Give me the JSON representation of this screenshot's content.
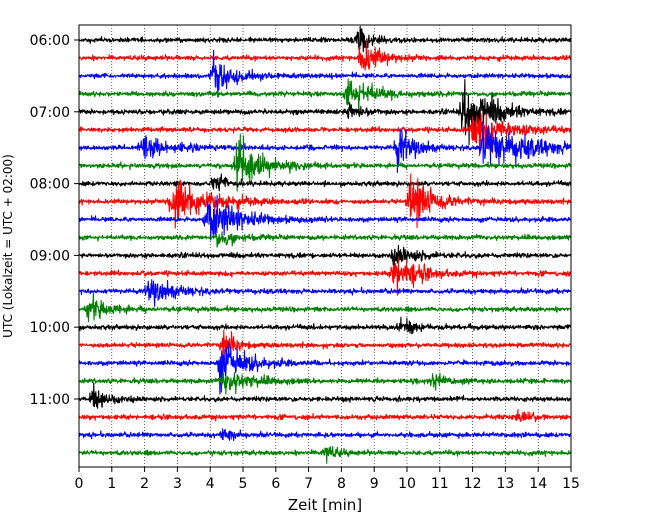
{
  "chart_data": {
    "type": "line",
    "title": "",
    "xlabel": "Zeit  [min]",
    "ylabel": "UTC (Lokalzeit = UTC + 02:00)",
    "xlim": [
      0,
      15
    ],
    "x_ticks": [
      "0",
      "1",
      "2",
      "3",
      "4",
      "5",
      "6",
      "7",
      "8",
      "9",
      "10",
      "11",
      "12",
      "13",
      "14",
      "15"
    ],
    "y_tick_labels": [
      "06:00",
      "07:00",
      "08:00",
      "09:00",
      "10:00",
      "11:00"
    ],
    "grid": "vertical dotted at each minute",
    "trace_color_cycle": [
      "#000000",
      "#ff0000",
      "#0000ff",
      "#008000"
    ],
    "series": [
      {
        "start": "06:00",
        "events": [
          {
            "x": 8.5,
            "amp": 1.6,
            "width": 0.35
          }
        ]
      },
      {
        "start": "06:15",
        "events": [
          {
            "x": 8.6,
            "amp": 2.2,
            "width": 0.5
          }
        ]
      },
      {
        "start": "06:30",
        "events": [
          {
            "x": 4.1,
            "amp": 2.6,
            "width": 0.5
          }
        ]
      },
      {
        "start": "06:45",
        "events": [
          {
            "x": 8.2,
            "amp": 2.0,
            "width": 0.7
          }
        ]
      },
      {
        "start": "07:00",
        "events": [
          {
            "x": 11.7,
            "amp": 3.4,
            "width": 0.8
          },
          {
            "x": 8.2,
            "amp": 1.2,
            "width": 0.4
          }
        ]
      },
      {
        "start": "07:15",
        "events": [
          {
            "x": 12.0,
            "amp": 2.6,
            "width": 0.9
          }
        ]
      },
      {
        "start": "07:30",
        "events": [
          {
            "x": 12.3,
            "amp": 2.7,
            "width": 1.3
          },
          {
            "x": 9.7,
            "amp": 2.4,
            "width": 0.5
          },
          {
            "x": 1.9,
            "amp": 1.4,
            "width": 0.7
          }
        ]
      },
      {
        "start": "07:45",
        "events": [
          {
            "x": 4.8,
            "amp": 3.0,
            "width": 0.7
          }
        ]
      },
      {
        "start": "08:00",
        "events": [
          {
            "x": 4.1,
            "amp": 1.6,
            "width": 0.3
          }
        ]
      },
      {
        "start": "08:15",
        "events": [
          {
            "x": 10.1,
            "amp": 3.4,
            "width": 0.6
          },
          {
            "x": 2.8,
            "amp": 2.8,
            "width": 1.0
          }
        ]
      },
      {
        "start": "08:30",
        "events": [
          {
            "x": 3.9,
            "amp": 2.7,
            "width": 0.9
          }
        ]
      },
      {
        "start": "08:45",
        "events": [
          {
            "x": 4.2,
            "amp": 1.0,
            "width": 0.5
          }
        ]
      },
      {
        "start": "09:00",
        "events": [
          {
            "x": 9.6,
            "amp": 1.2,
            "width": 0.6
          }
        ]
      },
      {
        "start": "09:15",
        "events": [
          {
            "x": 9.6,
            "amp": 2.6,
            "width": 0.6
          }
        ]
      },
      {
        "start": "09:30",
        "events": [
          {
            "x": 2.1,
            "amp": 1.5,
            "width": 0.8
          }
        ]
      },
      {
        "start": "09:45",
        "events": [
          {
            "x": 0.3,
            "amp": 1.4,
            "width": 0.6
          }
        ]
      },
      {
        "start": "10:00",
        "events": [
          {
            "x": 9.8,
            "amp": 1.1,
            "width": 0.4
          }
        ]
      },
      {
        "start": "10:15",
        "events": [
          {
            "x": 4.4,
            "amp": 1.8,
            "width": 0.3
          }
        ]
      },
      {
        "start": "10:30",
        "events": [
          {
            "x": 4.3,
            "amp": 2.6,
            "width": 0.7
          }
        ]
      },
      {
        "start": "10:45",
        "events": [
          {
            "x": 4.4,
            "amp": 1.3,
            "width": 0.8
          },
          {
            "x": 10.8,
            "amp": 0.9,
            "width": 0.3
          }
        ]
      },
      {
        "start": "11:00",
        "events": [
          {
            "x": 0.4,
            "amp": 1.5,
            "width": 0.4
          }
        ]
      },
      {
        "start": "11:15",
        "events": [
          {
            "x": 13.4,
            "amp": 0.7,
            "width": 0.4
          }
        ]
      },
      {
        "start": "11:30",
        "events": [
          {
            "x": 4.4,
            "amp": 0.8,
            "width": 0.3
          }
        ]
      },
      {
        "start": "11:45",
        "events": [
          {
            "x": 7.5,
            "amp": 1.0,
            "width": 0.3
          }
        ]
      }
    ]
  }
}
